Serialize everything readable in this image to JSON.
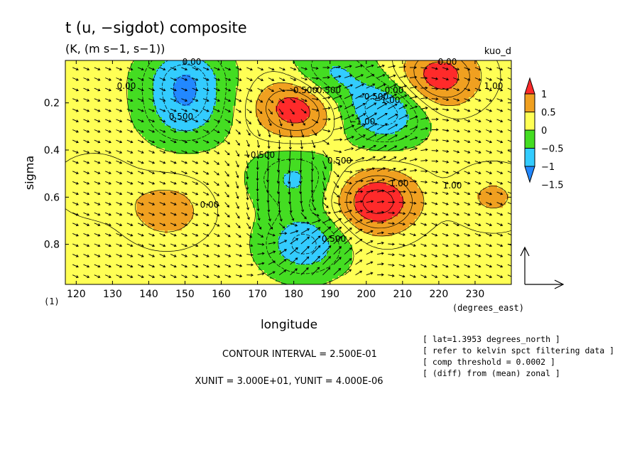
{
  "chart_data": {
    "type": "heatmap",
    "title": "t (u, −sigdot) composite",
    "subtitle": "(K, (m s−1, s−1))",
    "dataset_label": "kuo_d",
    "xlabel": "longitude",
    "ylabel": "sigma",
    "x_unit_label": "(degrees_east)",
    "panel_label": "(1)",
    "x_ticks": [
      "120",
      "130",
      "140",
      "150",
      "160",
      "170",
      "180",
      "190",
      "200",
      "210",
      "220",
      "230"
    ],
    "x_tick_values": [
      120,
      130,
      140,
      150,
      160,
      170,
      180,
      190,
      200,
      210,
      220,
      230
    ],
    "y_ticks": [
      "0.2",
      "0.4",
      "0.6",
      "0.8"
    ],
    "y_tick_values": [
      0.2,
      0.4,
      0.6,
      0.8
    ],
    "xlim": [
      117,
      240
    ],
    "ylim": [
      0.02,
      0.97
    ],
    "y_reversed": true,
    "colorbar": {
      "labels": [
        "1",
        "0.5",
        "0",
        "−0.5",
        "−1",
        "−1.5"
      ],
      "levels": [
        1,
        0.5,
        0,
        -0.5,
        -1,
        -1.5
      ],
      "colors": [
        "#ff2a2a",
        "#f0a020",
        "#ffff55",
        "#44dd22",
        "#33ccff",
        "#2288ff"
      ]
    },
    "contour_labels": [
      "0.00",
      "0.00",
      "0.500",
      "−0.500",
      "−0.500",
      "−1.00",
      "0.500",
      "−0.500",
      "1.00",
      "0.00",
      "0.00",
      "1.00",
      "−1.00",
      "0.500",
      "1.00",
      "0.00",
      "0.500"
    ],
    "anomalies": [
      {
        "lon": 181,
        "sigma": 0.22,
        "value": 1.2
      },
      {
        "lon": 220,
        "sigma": 0.09,
        "value": 1.1
      },
      {
        "lon": 203,
        "sigma": 0.62,
        "value": 1.3
      },
      {
        "lon": 205,
        "sigma": 0.24,
        "value": -1.1
      },
      {
        "lon": 150,
        "sigma": 0.25,
        "value": -0.8
      },
      {
        "lon": 183,
        "sigma": 0.8,
        "value": -1.0
      },
      {
        "lon": 180,
        "sigma": 0.52,
        "value": -0.7
      },
      {
        "lon": 150,
        "sigma": 0.09,
        "value": -1.0
      },
      {
        "lon": 190,
        "sigma": 0.09,
        "value": -0.8
      },
      {
        "lon": 145,
        "sigma": 0.66,
        "value": 0.55
      },
      {
        "lon": 125,
        "sigma": 0.55,
        "value": 0.3
      },
      {
        "lon": 235,
        "sigma": 0.6,
        "value": 0.4
      }
    ],
    "wind_anomalies": [
      {
        "lon": 180,
        "sigma": 0.55,
        "u": -0.3,
        "w": -1.0
      },
      {
        "lon": 185,
        "sigma": 0.8,
        "u": 0.5,
        "w": 0.8
      },
      {
        "lon": 200,
        "sigma": 0.3,
        "u": 0.6,
        "w": 0.5
      }
    ],
    "contour_interval_text": "CONTOUR INTERVAL = 2.500E-01",
    "unit_text": "XUNIT = 3.000E+01, YUNIT = 4.000E-06",
    "notes": [
      "[ lat=1.3953 degrees_north ]",
      "[ refer to kelvin spct filtering data ]",
      "[ comp threshold = 0.0002 ]",
      "[ (diff) from (mean) zonal ]"
    ]
  }
}
